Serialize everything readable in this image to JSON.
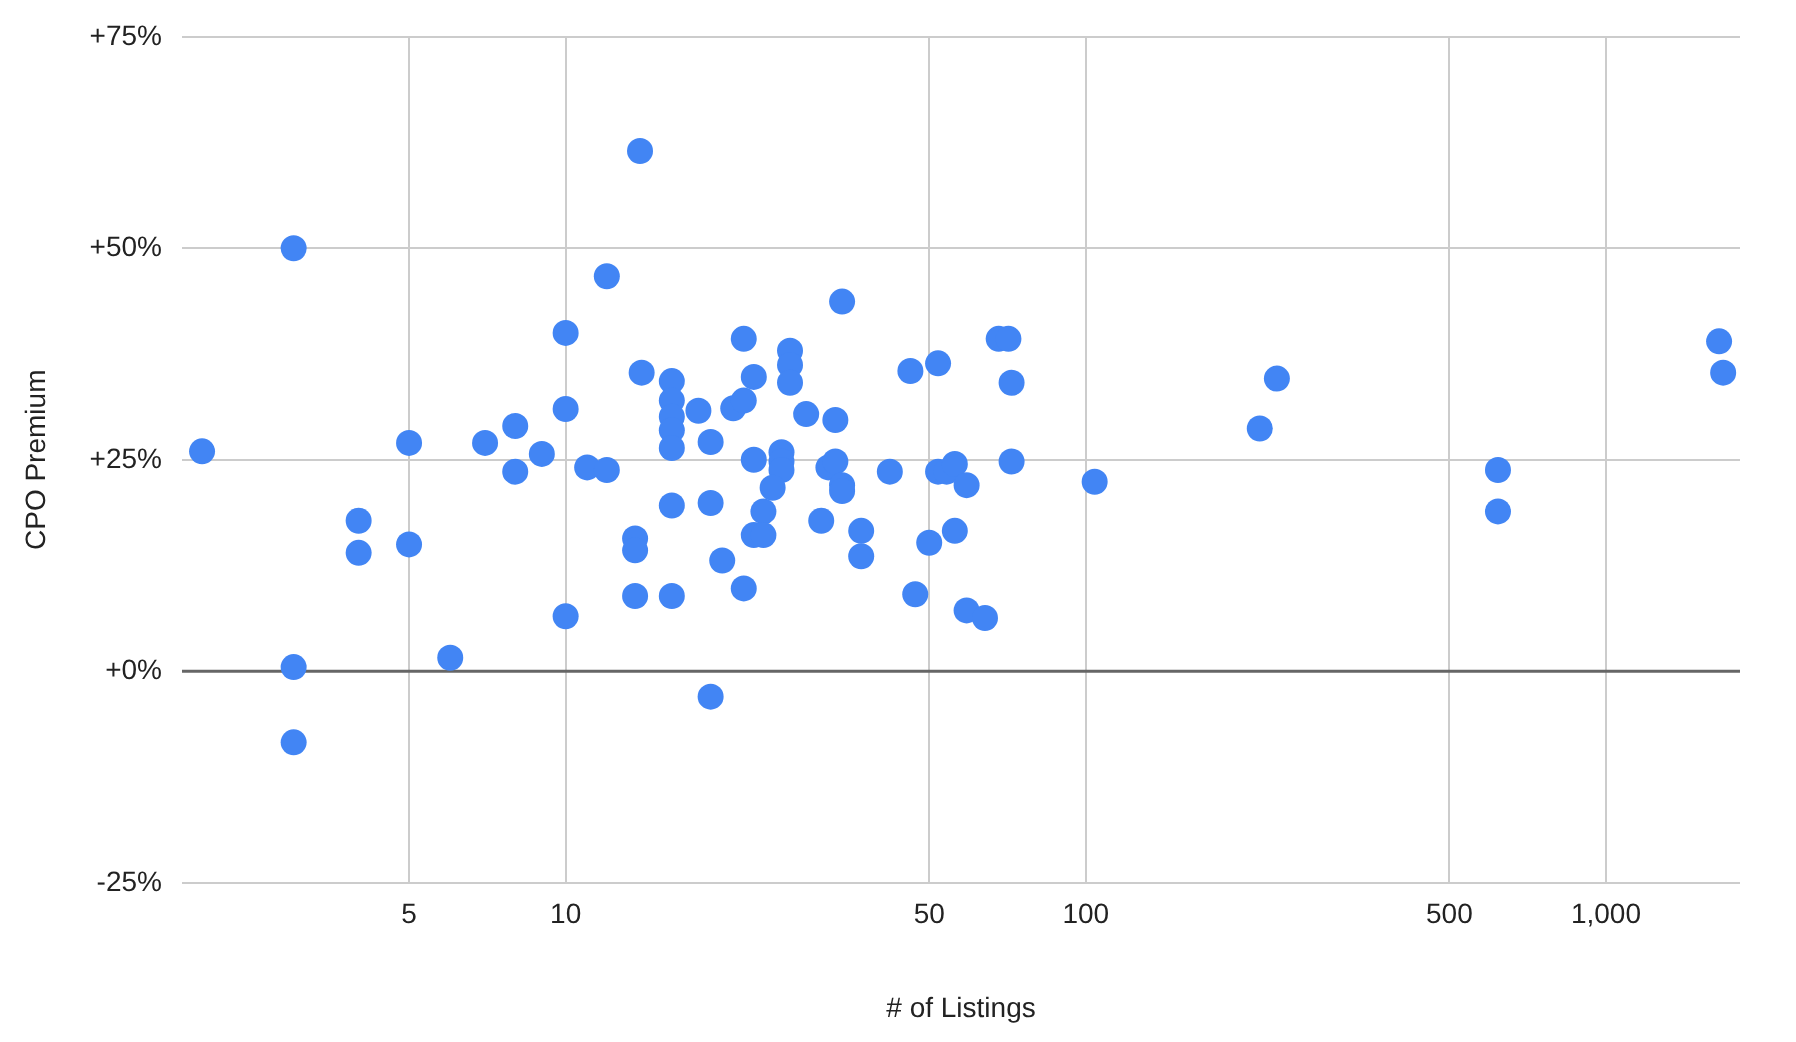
{
  "chart_data": {
    "type": "scatter",
    "xlabel": "# of Listings",
    "ylabel": "CPO Premium",
    "log": "x",
    "grid": true,
    "marker": "circle",
    "legend": false,
    "xlim": [
      1.83,
      1810
    ],
    "xticks": [
      5,
      10,
      50,
      100,
      500,
      {
        "value": 1000,
        "label": "1,000"
      }
    ],
    "ylim": [
      -25,
      75
    ],
    "yticks": [
      {
        "value": -25,
        "label": "-25%"
      },
      {
        "value": 0,
        "label": "+0%"
      },
      {
        "value": 25,
        "label": "+25%"
      },
      {
        "value": 50,
        "label": "+50%"
      },
      {
        "value": 75,
        "label": "+75%"
      }
    ],
    "ref_lines": [
      {
        "axis": "y",
        "value": 0,
        "color": "#666666"
      }
    ],
    "series": [
      {
        "color": "#4285f4",
        "x": [
          2,
          3,
          3,
          3,
          4,
          4,
          5,
          5,
          6,
          7,
          8,
          8,
          9,
          10,
          10,
          10,
          12,
          13.9,
          34,
          22,
          27,
          27,
          27,
          14,
          16,
          23,
          16,
          16,
          16,
          16,
          18,
          21,
          22,
          19,
          29,
          33,
          46,
          52,
          68,
          71,
          72,
          11,
          12,
          23,
          26,
          26,
          26,
          25,
          32,
          33,
          34,
          34,
          42,
          52,
          54,
          56,
          59,
          72,
          104,
          16,
          19,
          13.6,
          13.6,
          24,
          23,
          24,
          20,
          31,
          37,
          37,
          50,
          56,
          13.6,
          16,
          22,
          47,
          59,
          64,
          19,
          233,
          216,
          620,
          620,
          1650,
          1680
        ],
        "values": [
          26,
          50,
          0.5,
          -8.4,
          17.8,
          14,
          27,
          15,
          1.6,
          27,
          29,
          23.6,
          25.7,
          40,
          31,
          6.5,
          46.7,
          61.5,
          43.7,
          39.3,
          37.9,
          36.2,
          34.1,
          35.3,
          34.3,
          34.8,
          32,
          30.1,
          28.5,
          26.4,
          30.8,
          31.1,
          32,
          27.1,
          30.4,
          29.7,
          35.5,
          36.4,
          39.3,
          39.3,
          34.1,
          24.1,
          23.8,
          25,
          25.9,
          24.8,
          23.8,
          21.7,
          24.1,
          24.8,
          22,
          21.3,
          23.6,
          23.6,
          23.6,
          24.5,
          22,
          24.8,
          22.4,
          19.6,
          19.9,
          15.7,
          14.3,
          18.9,
          16.1,
          16.1,
          13.1,
          17.8,
          16.6,
          13.6,
          15.2,
          16.6,
          8.9,
          8.9,
          9.8,
          9.1,
          7.2,
          6.3,
          -3,
          34.6,
          28.7,
          23.8,
          18.9,
          39,
          35.3
        ]
      }
    ]
  }
}
